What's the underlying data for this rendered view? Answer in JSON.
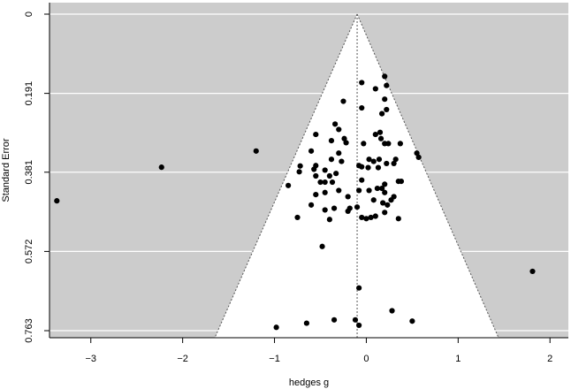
{
  "chart_data": {
    "type": "scatter",
    "subtype": "funnel-plot",
    "xlabel": "hedges g",
    "ylabel": "Standard Error",
    "x_ticks": [
      -3,
      -2,
      -1,
      0,
      1,
      2
    ],
    "y_ticks": [
      "0",
      "0.191",
      "0.381",
      "0.572",
      "0.763"
    ],
    "xlim": [
      -3.45,
      2.2
    ],
    "ylim": [
      0,
      0.78
    ],
    "y_reversed": true,
    "grid": "horizontal",
    "funnel_center": -0.1,
    "funnel_bottom_left": -1.65,
    "funnel_bottom_right": 1.44,
    "colors": {
      "panel_background": "#cccccc",
      "funnel_fill": "#ffffff",
      "points": "#000000",
      "gridlines": "#ffffff",
      "funnel_lines": "#555555"
    },
    "points": [
      {
        "x": -3.37,
        "y": 0.45
      },
      {
        "x": -2.23,
        "y": 0.369
      },
      {
        "x": -1.2,
        "y": 0.33
      },
      {
        "x": 1.81,
        "y": 0.62
      },
      {
        "x": -0.48,
        "y": 0.56
      },
      {
        "x": -0.08,
        "y": 0.66
      },
      {
        "x": 0.2,
        "y": 0.15
      },
      {
        "x": 0.22,
        "y": 0.172
      },
      {
        "x": 0.1,
        "y": 0.18
      },
      {
        "x": 0.2,
        "y": 0.205
      },
      {
        "x": -0.05,
        "y": 0.165
      },
      {
        "x": -0.25,
        "y": 0.21
      },
      {
        "x": 0.22,
        "y": 0.23
      },
      {
        "x": 0.17,
        "y": 0.24
      },
      {
        "x": -0.05,
        "y": 0.226
      },
      {
        "x": -0.34,
        "y": 0.265
      },
      {
        "x": -0.3,
        "y": 0.278
      },
      {
        "x": -0.38,
        "y": 0.305
      },
      {
        "x": -0.55,
        "y": 0.29
      },
      {
        "x": -0.22,
        "y": 0.31
      },
      {
        "x": -0.24,
        "y": 0.3
      },
      {
        "x": 0.1,
        "y": 0.29
      },
      {
        "x": 0.15,
        "y": 0.285
      },
      {
        "x": 0.16,
        "y": 0.3
      },
      {
        "x": 0.2,
        "y": 0.312
      },
      {
        "x": 0.24,
        "y": 0.312
      },
      {
        "x": -0.03,
        "y": 0.312
      },
      {
        "x": 0.37,
        "y": 0.312
      },
      {
        "x": -0.3,
        "y": 0.335
      },
      {
        "x": -0.27,
        "y": 0.355
      },
      {
        "x": -0.38,
        "y": 0.35
      },
      {
        "x": -0.6,
        "y": 0.33
      },
      {
        "x": 0.03,
        "y": 0.35
      },
      {
        "x": 0.08,
        "y": 0.355
      },
      {
        "x": 0.14,
        "y": 0.35
      },
      {
        "x": 0.02,
        "y": 0.37
      },
      {
        "x": 0.13,
        "y": 0.37
      },
      {
        "x": 0.22,
        "y": 0.36
      },
      {
        "x": 0.3,
        "y": 0.36
      },
      {
        "x": 0.32,
        "y": 0.35
      },
      {
        "x": 0.55,
        "y": 0.335
      },
      {
        "x": 0.57,
        "y": 0.345
      },
      {
        "x": -0.08,
        "y": 0.365
      },
      {
        "x": -0.05,
        "y": 0.368
      },
      {
        "x": -0.55,
        "y": 0.365
      },
      {
        "x": -0.57,
        "y": 0.374
      },
      {
        "x": -0.72,
        "y": 0.366
      },
      {
        "x": -0.73,
        "y": 0.38
      },
      {
        "x": -0.45,
        "y": 0.376
      },
      {
        "x": -0.55,
        "y": 0.39
      },
      {
        "x": -0.4,
        "y": 0.39
      },
      {
        "x": -0.33,
        "y": 0.384
      },
      {
        "x": -0.5,
        "y": 0.405
      },
      {
        "x": -0.45,
        "y": 0.405
      },
      {
        "x": -0.37,
        "y": 0.405
      },
      {
        "x": -0.55,
        "y": 0.435
      },
      {
        "x": -0.45,
        "y": 0.43
      },
      {
        "x": -0.3,
        "y": 0.425
      },
      {
        "x": -0.85,
        "y": 0.413
      },
      {
        "x": 0.2,
        "y": 0.41
      },
      {
        "x": 0.35,
        "y": 0.403
      },
      {
        "x": 0.38,
        "y": 0.403
      },
      {
        "x": -0.05,
        "y": 0.4
      },
      {
        "x": 0.12,
        "y": 0.42
      },
      {
        "x": 0.17,
        "y": 0.42
      },
      {
        "x": 0.2,
        "y": 0.43
      },
      {
        "x": 0.03,
        "y": 0.425
      },
      {
        "x": -0.08,
        "y": 0.425
      },
      {
        "x": -0.2,
        "y": 0.44
      },
      {
        "x": 0.3,
        "y": 0.44
      },
      {
        "x": -0.35,
        "y": 0.468
      },
      {
        "x": -0.45,
        "y": 0.472
      },
      {
        "x": -0.6,
        "y": 0.46
      },
      {
        "x": -0.1,
        "y": 0.465
      },
      {
        "x": -0.18,
        "y": 0.468
      },
      {
        "x": -0.2,
        "y": 0.475
      },
      {
        "x": -0.4,
        "y": 0.495
      },
      {
        "x": -0.75,
        "y": 0.49
      },
      {
        "x": 0.08,
        "y": 0.448
      },
      {
        "x": 0.18,
        "y": 0.455
      },
      {
        "x": 0.23,
        "y": 0.46
      },
      {
        "x": 0.27,
        "y": 0.448
      },
      {
        "x": 0.2,
        "y": 0.478
      },
      {
        "x": 0.1,
        "y": 0.487
      },
      {
        "x": 0.0,
        "y": 0.493
      },
      {
        "x": 0.05,
        "y": 0.49
      },
      {
        "x": -0.05,
        "y": 0.49
      },
      {
        "x": 0.35,
        "y": 0.493
      },
      {
        "x": -0.35,
        "y": 0.737
      },
      {
        "x": -0.65,
        "y": 0.745
      },
      {
        "x": -0.98,
        "y": 0.755
      },
      {
        "x": -0.12,
        "y": 0.737
      },
      {
        "x": -0.08,
        "y": 0.75
      },
      {
        "x": 0.5,
        "y": 0.74
      },
      {
        "x": 0.28,
        "y": 0.715
      }
    ]
  }
}
